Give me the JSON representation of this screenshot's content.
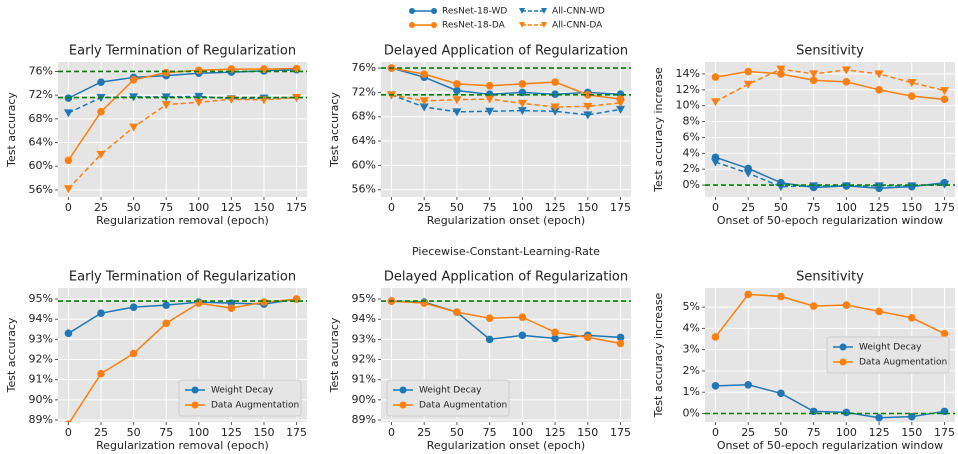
{
  "figure_legend_series": [
    0,
    1,
    2,
    3
  ],
  "section_title": "Piecewise-Constant-Learning-Rate",
  "chart_data": [
    {
      "type": "line",
      "title": "Early Termination of Regularization",
      "xlabel": "Regularization removal (epoch)",
      "ylabel": "Test accuracy",
      "x": [
        0,
        25,
        50,
        75,
        100,
        125,
        150,
        175
      ],
      "xlim": [
        -8,
        183
      ],
      "xticks": [
        0,
        25,
        50,
        75,
        100,
        125,
        150,
        175
      ],
      "ylim": [
        54.8,
        77.6
      ],
      "yticks": [
        {
          "value": 56,
          "label": "56%"
        },
        {
          "value": 60,
          "label": "60%"
        },
        {
          "value": 64,
          "label": "64%"
        },
        {
          "value": 68,
          "label": "68%"
        },
        {
          "value": 72,
          "label": "72%"
        },
        {
          "value": 76,
          "label": "76%"
        }
      ],
      "grid": true,
      "hlines": [
        76.0,
        71.6
      ],
      "hline_color": "#008000",
      "series": [
        {
          "name": "ResNet-18-WD",
          "color": "#1f77b4",
          "marker": "o",
          "linestyle": "solid",
          "values": [
            71.5,
            74.2,
            75.0,
            75.3,
            75.7,
            75.9,
            76.1,
            76.3
          ]
        },
        {
          "name": "ResNet-18-DA",
          "color": "#ff7f0e",
          "marker": "o",
          "linestyle": "solid",
          "values": [
            61.0,
            69.2,
            74.6,
            75.8,
            76.2,
            76.4,
            76.4,
            76.5
          ]
        },
        {
          "name": "All-CNN-WD",
          "color": "#1f77b4",
          "marker": "v",
          "linestyle": "dashed",
          "values": [
            69.0,
            71.6,
            71.7,
            71.7,
            71.8,
            71.4,
            71.5,
            71.6
          ]
        },
        {
          "name": "All-CNN-DA",
          "color": "#ff7f0e",
          "marker": "v",
          "linestyle": "dashed",
          "values": [
            56.2,
            62.0,
            66.6,
            70.4,
            70.8,
            71.3,
            71.2,
            71.6
          ]
        }
      ]
    },
    {
      "type": "line",
      "title": "Delayed Application of Regularization",
      "xlabel": "Regularization onset (epoch)",
      "ylabel": "Test accuracy",
      "x": [
        0,
        25,
        50,
        75,
        100,
        125,
        150,
        175
      ],
      "xlim": [
        -8,
        183
      ],
      "xticks": [
        0,
        25,
        50,
        75,
        100,
        125,
        150,
        175
      ],
      "ylim": [
        54.8,
        77.0
      ],
      "yticks": [
        {
          "value": 56,
          "label": "56%"
        },
        {
          "value": 60,
          "label": "60%"
        },
        {
          "value": 64,
          "label": "64%"
        },
        {
          "value": 68,
          "label": "68%"
        },
        {
          "value": 72,
          "label": "72%"
        },
        {
          "value": 76,
          "label": "76%"
        }
      ],
      "grid": true,
      "hlines": [
        76.0,
        71.6
      ],
      "hline_color": "#008000",
      "series": [
        {
          "color": "#1f77b4",
          "marker": "o",
          "linestyle": "solid",
          "values": [
            76.0,
            74.5,
            72.3,
            71.7,
            72.0,
            71.7,
            72.0,
            71.7
          ]
        },
        {
          "color": "#ff7f0e",
          "marker": "o",
          "linestyle": "solid",
          "values": [
            76.0,
            75.0,
            73.4,
            73.1,
            73.4,
            73.7,
            71.6,
            70.9
          ]
        },
        {
          "color": "#1f77b4",
          "marker": "v",
          "linestyle": "dashed",
          "values": [
            71.6,
            69.6,
            68.8,
            68.9,
            69.0,
            68.9,
            68.3,
            69.2
          ]
        },
        {
          "color": "#ff7f0e",
          "marker": "v",
          "linestyle": "dashed",
          "values": [
            71.6,
            70.6,
            70.8,
            70.9,
            70.2,
            69.6,
            69.7,
            70.3
          ]
        }
      ]
    },
    {
      "type": "line",
      "title": "Sensitivity",
      "xlabel": "Onset of 50-epoch regularization window",
      "ylabel": "Test accuracy increase",
      "x": [
        0,
        25,
        50,
        75,
        100,
        125,
        150,
        175
      ],
      "xlim": [
        -8,
        183
      ],
      "xticks": [
        0,
        25,
        50,
        75,
        100,
        125,
        150,
        175
      ],
      "ylim": [
        -1.5,
        15.5
      ],
      "yticks": [
        {
          "value": 0,
          "label": "0%"
        },
        {
          "value": 2,
          "label": "2%"
        },
        {
          "value": 4,
          "label": "4%"
        },
        {
          "value": 6,
          "label": "6%"
        },
        {
          "value": 8,
          "label": "8%"
        },
        {
          "value": 10,
          "label": "10%"
        },
        {
          "value": 12,
          "label": "12%"
        },
        {
          "value": 14,
          "label": "14%"
        }
      ],
      "grid": true,
      "hlines": [
        0
      ],
      "hline_color": "#008000",
      "series": [
        {
          "color": "#1f77b4",
          "marker": "o",
          "linestyle": "solid",
          "values": [
            3.5,
            2.1,
            0.3,
            -0.3,
            -0.1,
            -0.4,
            -0.2,
            0.3
          ]
        },
        {
          "color": "#ff7f0e",
          "marker": "o",
          "linestyle": "solid",
          "values": [
            13.6,
            14.3,
            14.0,
            13.2,
            13.0,
            12.0,
            11.2,
            10.8
          ]
        },
        {
          "color": "#1f77b4",
          "marker": "v",
          "linestyle": "dashed",
          "values": [
            2.9,
            1.5,
            -0.2,
            -0.1,
            -0.1,
            -0.1,
            -0.1,
            0.1
          ]
        },
        {
          "color": "#ff7f0e",
          "marker": "v",
          "linestyle": "dashed",
          "values": [
            10.5,
            12.7,
            14.6,
            14.0,
            14.5,
            14.0,
            12.9,
            11.9
          ]
        }
      ]
    },
    {
      "type": "line",
      "title": "Early Termination of Regularization",
      "xlabel": "Regularization removal (epoch)",
      "ylabel": "Test accuracy",
      "x": [
        0,
        25,
        50,
        75,
        100,
        125,
        150,
        175
      ],
      "xlim": [
        -8,
        183
      ],
      "xticks": [
        0,
        25,
        50,
        75,
        100,
        125,
        150,
        175
      ],
      "ylim": [
        88.9,
        95.55
      ],
      "yticks": [
        {
          "value": 89,
          "label": "89%"
        },
        {
          "value": 90,
          "label": "90%"
        },
        {
          "value": 91,
          "label": "91%"
        },
        {
          "value": 92,
          "label": "92%"
        },
        {
          "value": 93,
          "label": "93%"
        },
        {
          "value": 94,
          "label": "94%"
        },
        {
          "value": 95,
          "label": "95%"
        }
      ],
      "grid": true,
      "hlines": [
        94.9
      ],
      "hline_color": "#008000",
      "legend": "lower right",
      "series": [
        {
          "name": "Weight Decay",
          "color": "#1f77b4",
          "marker": "o",
          "linestyle": "solid",
          "values": [
            93.3,
            94.3,
            94.6,
            94.7,
            94.85,
            94.8,
            94.75,
            95.0
          ]
        },
        {
          "name": "Data Augmentation",
          "color": "#ff7f0e",
          "marker": "o",
          "linestyle": "solid",
          "values": [
            88.8,
            91.3,
            92.3,
            93.8,
            94.8,
            94.55,
            94.85,
            95.0
          ]
        }
      ]
    },
    {
      "type": "line",
      "title": "Delayed Application of Regularization",
      "xlabel": "Regularization onset (epoch)",
      "ylabel": "Test accuracy",
      "x": [
        0,
        25,
        50,
        75,
        100,
        125,
        150,
        175
      ],
      "xlim": [
        -8,
        183
      ],
      "xticks": [
        0,
        25,
        50,
        75,
        100,
        125,
        150,
        175
      ],
      "ylim": [
        88.9,
        95.55
      ],
      "yticks": [
        {
          "value": 89,
          "label": "89%"
        },
        {
          "value": 90,
          "label": "90%"
        },
        {
          "value": 91,
          "label": "91%"
        },
        {
          "value": 92,
          "label": "92%"
        },
        {
          "value": 93,
          "label": "93%"
        },
        {
          "value": 94,
          "label": "94%"
        },
        {
          "value": 95,
          "label": "95%"
        }
      ],
      "grid": true,
      "hlines": [
        94.9
      ],
      "hline_color": "#008000",
      "legend": "lower left",
      "series": [
        {
          "name": "Weight Decay",
          "color": "#1f77b4",
          "marker": "o",
          "linestyle": "solid",
          "values": [
            94.9,
            94.85,
            94.35,
            93.0,
            93.2,
            93.05,
            93.2,
            93.1
          ]
        },
        {
          "name": "Data Augmentation",
          "color": "#ff7f0e",
          "marker": "o",
          "linestyle": "solid",
          "values": [
            94.9,
            94.8,
            94.35,
            94.05,
            94.1,
            93.35,
            93.1,
            92.8
          ]
        }
      ]
    },
    {
      "type": "line",
      "title": "Sensitivity",
      "xlabel": "Onset of 50-epoch regularization window",
      "ylabel": "Test accuracy increase",
      "x": [
        0,
        25,
        50,
        75,
        100,
        125,
        150,
        175
      ],
      "xlim": [
        -8,
        183
      ],
      "xticks": [
        0,
        25,
        50,
        75,
        100,
        125,
        150,
        175
      ],
      "ylim": [
        -0.4,
        5.9
      ],
      "yticks": [
        {
          "value": 0,
          "label": "0%"
        },
        {
          "value": 1,
          "label": "1%"
        },
        {
          "value": 2,
          "label": "2%"
        },
        {
          "value": 3,
          "label": "3%"
        },
        {
          "value": 4,
          "label": "4%"
        },
        {
          "value": 5,
          "label": "5%"
        }
      ],
      "grid": true,
      "hlines": [
        0
      ],
      "hline_color": "#008000",
      "legend": "center right",
      "series": [
        {
          "name": "Weight Decay",
          "color": "#1f77b4",
          "marker": "o",
          "linestyle": "solid",
          "values": [
            1.3,
            1.35,
            0.95,
            0.1,
            0.05,
            -0.2,
            -0.15,
            0.1
          ]
        },
        {
          "name": "Data Augmentation",
          "color": "#ff7f0e",
          "marker": "o",
          "linestyle": "solid",
          "values": [
            3.6,
            5.6,
            5.5,
            5.05,
            5.1,
            4.8,
            4.5,
            3.75
          ]
        }
      ]
    }
  ]
}
